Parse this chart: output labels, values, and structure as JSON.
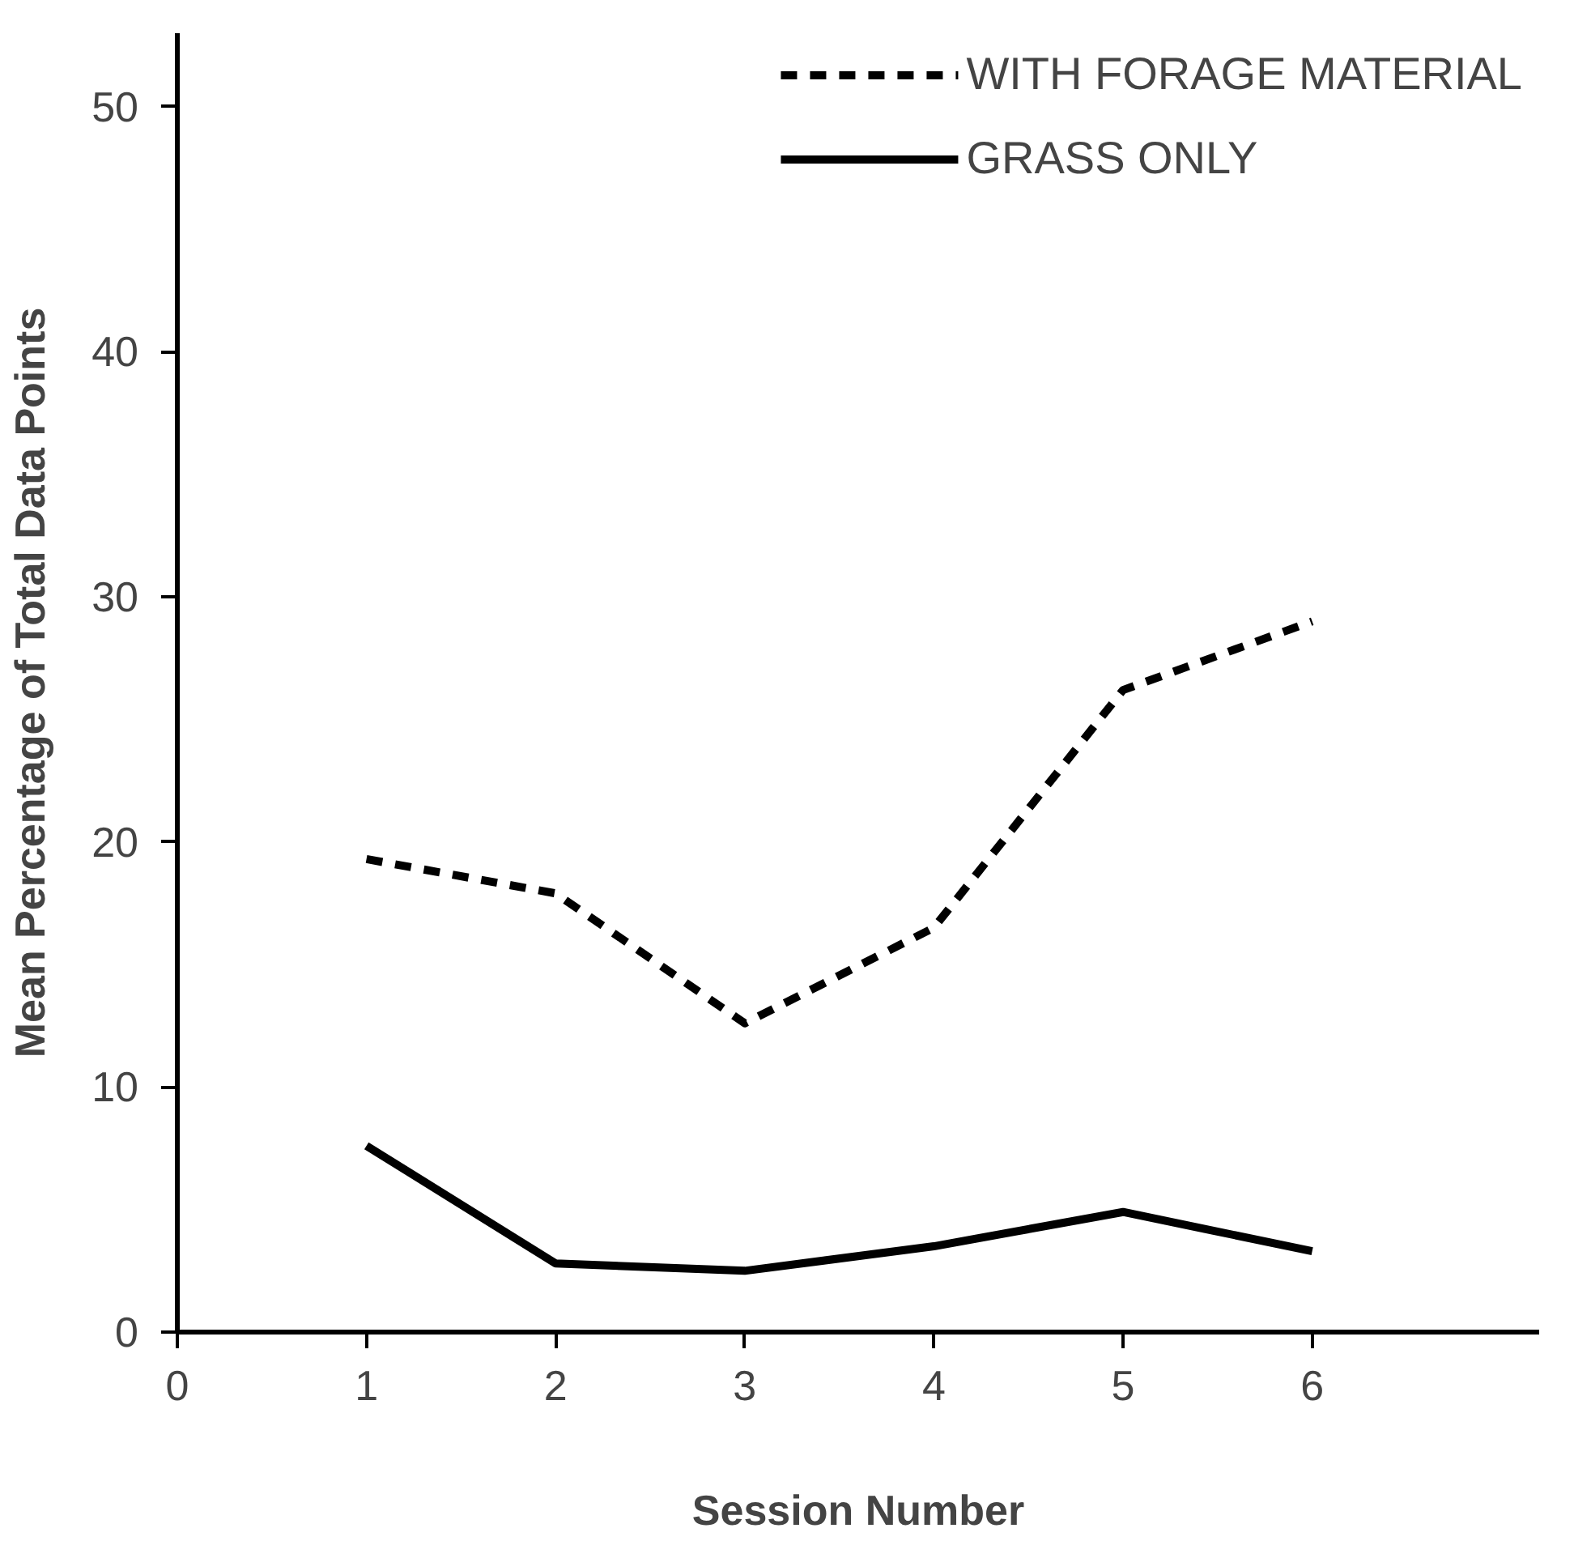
{
  "chart_data": {
    "type": "line",
    "xlabel": "Session Number",
    "ylabel": "Mean Percentage of Total Data Points",
    "x": [
      1,
      2,
      3,
      4,
      5,
      6
    ],
    "series": [
      {
        "name": "WITH FORAGE MATERIAL",
        "color": "#000000",
        "line_style": "dashed",
        "values": [
          19.3,
          17.9,
          12.6,
          16.5,
          26.2,
          29.0
        ]
      },
      {
        "name": "GRASS ONLY",
        "color": "#000000",
        "line_style": "solid",
        "values": [
          7.6,
          2.8,
          2.5,
          3.5,
          4.9,
          3.3
        ]
      }
    ],
    "xlim": [
      0,
      7.2
    ],
    "ylim": [
      0,
      53
    ],
    "xticks": [
      0,
      1,
      2,
      3,
      4,
      5,
      6
    ],
    "yticks": [
      0,
      10,
      20,
      30,
      40,
      50
    ],
    "grid": false,
    "legend": "top right",
    "marker": "none"
  }
}
